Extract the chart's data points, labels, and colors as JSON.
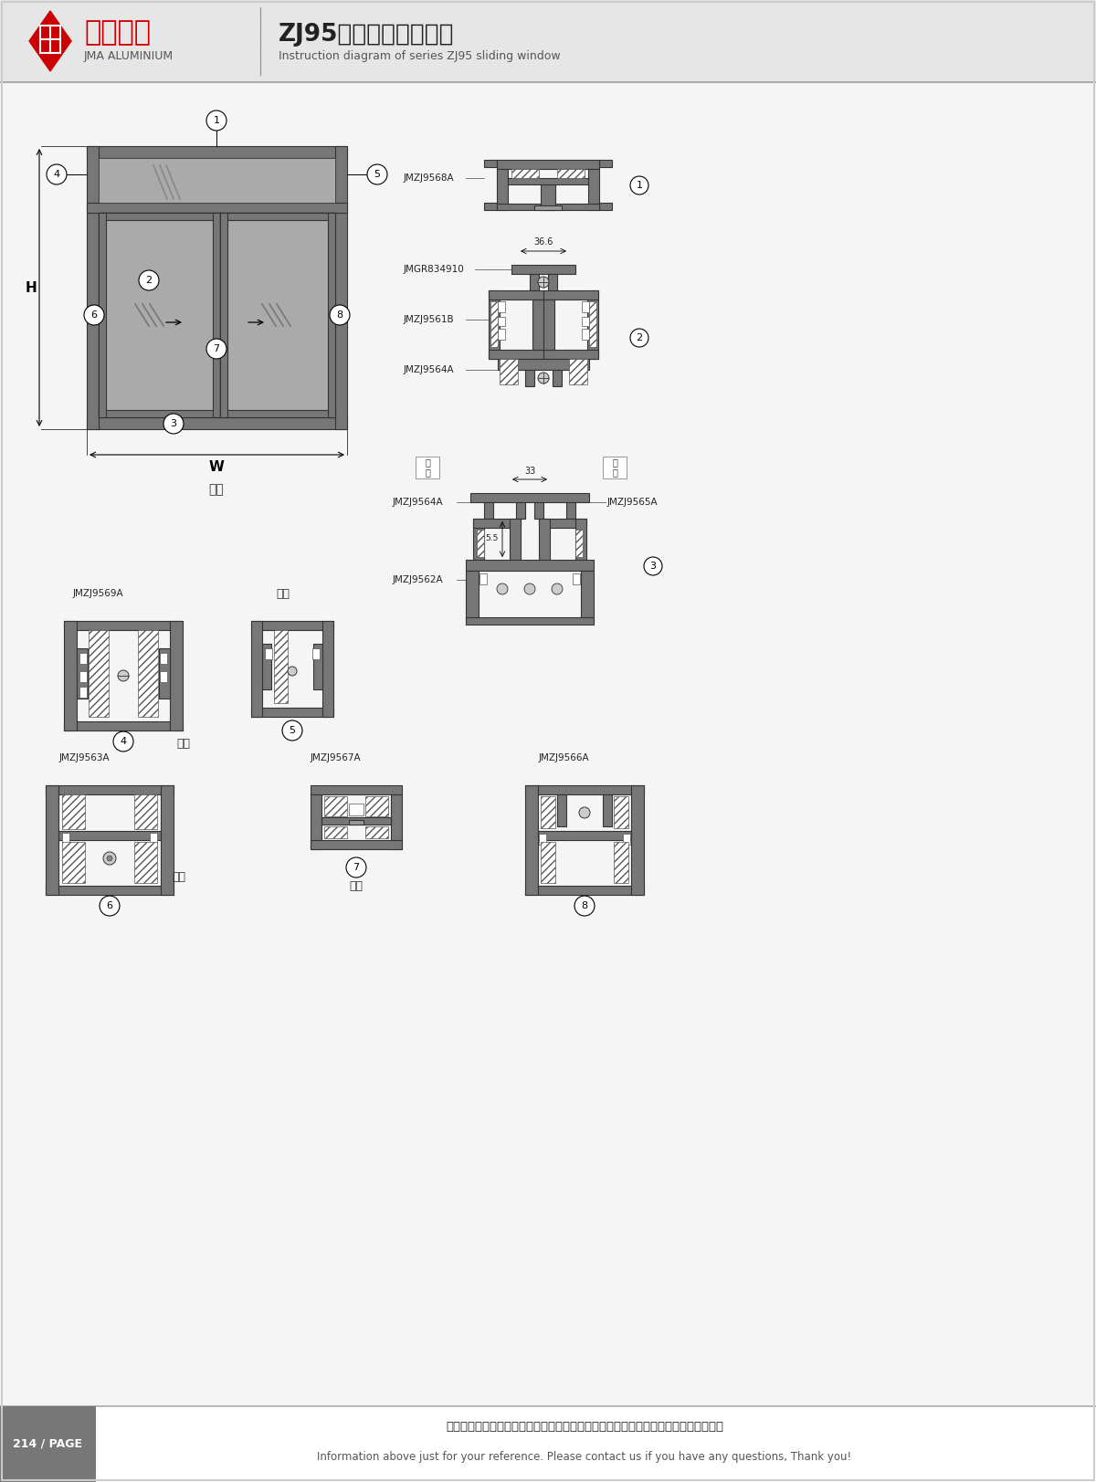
{
  "title_cn": "ZJ95系列推拉窗结构图",
  "title_en": "Instruction diagram of series ZJ95 sliding window",
  "company_cn": "坚美铝业",
  "company_en": "JMA ALUMINIUM",
  "footer_cn": "图中所示型材截面、装配、编号、尺寸及重量仅供参考。如有疑问，请向本公司查询。",
  "footer_en": "Information above just for your reference. Please contact us if you have any questions, Thank you!",
  "page": "214 / PAGE",
  "bg_color": "#f5f5f5",
  "header_bg": "#e8e8e8",
  "dark_gray": "#555555",
  "mid_gray": "#888888",
  "light_gray": "#cccccc",
  "red": "#cc0000",
  "black": "#000000",
  "white": "#ffffff",
  "frame_color": "#666666",
  "section_color": "#777777"
}
